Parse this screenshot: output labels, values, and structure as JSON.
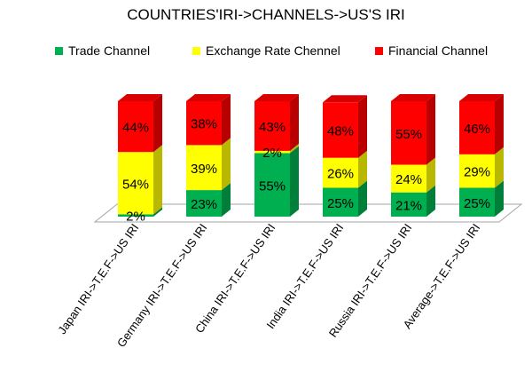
{
  "chart_data": {
    "type": "bar",
    "stacked": true,
    "percent_stacked": true,
    "three_d": true,
    "title": "COUNTRIES'IRI->CHANNELS->US'S IRI",
    "legend_position": "top",
    "categories": [
      "Japan IRI->T.E.F->US IRI",
      "Germany IRI->T.E.F->US IRI",
      "China IRI->T.E.F->US IRI",
      "India IRI->T.E.F->US IRI",
      "Russia IRI->T.E.F->US IRI",
      "Average->T.E.F->US IRI"
    ],
    "series": [
      {
        "name": "Trade Channel",
        "color": "#00B050",
        "values": [
          2,
          23,
          55,
          25,
          21,
          25
        ],
        "labels": [
          "2%",
          "23%",
          "55%",
          "25%",
          "21%",
          "25%"
        ]
      },
      {
        "name": "Exchange Rate Chennel",
        "color": "#FFFF00",
        "values": [
          54,
          39,
          2,
          26,
          24,
          29
        ],
        "labels": [
          "54%",
          "39%",
          "2%",
          "26%",
          "24%",
          "29%"
        ]
      },
      {
        "name": "Financial Channel",
        "color": "#FF0000",
        "values": [
          44,
          38,
          43,
          48,
          55,
          46
        ],
        "labels": [
          "44%",
          "38%",
          "43%",
          "48%",
          "55%",
          "46%"
        ]
      }
    ],
    "ylim": [
      0,
      100
    ],
    "grid": false
  }
}
